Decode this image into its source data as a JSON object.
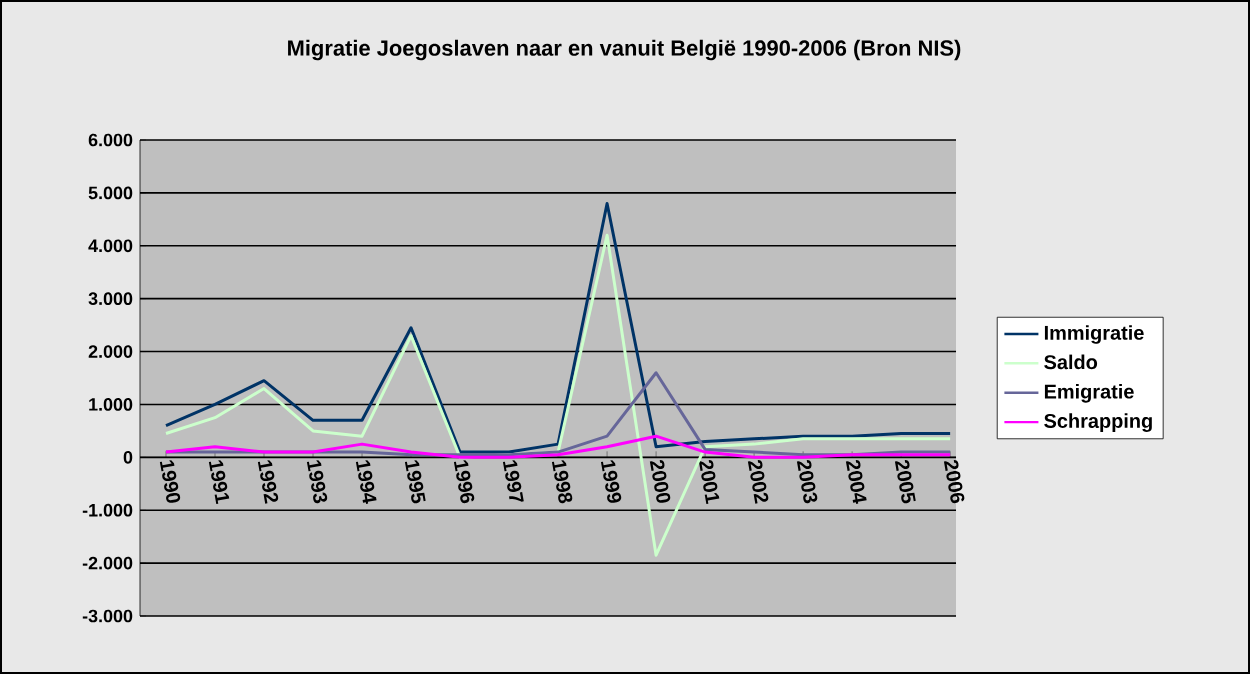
{
  "chart_data": {
    "type": "line",
    "title": "Migratie Joegoslaven naar en vanuit België 1990-2006 (Bron NIS)",
    "categories": [
      "1990",
      "1991",
      "1992",
      "1993",
      "1994",
      "1995",
      "1996",
      "1997",
      "1998",
      "1999",
      "2000",
      "2001",
      "2002",
      "2003",
      "2004",
      "2005",
      "2006"
    ],
    "series": [
      {
        "name": "Immigratie",
        "color": "#003366",
        "values": [
          600,
          1000,
          1450,
          700,
          700,
          2450,
          100,
          100,
          250,
          4800,
          200,
          300,
          350,
          400,
          400,
          450,
          450
        ]
      },
      {
        "name": "Saldo",
        "color": "#ccffcc",
        "values": [
          450,
          750,
          1300,
          500,
          400,
          2300,
          0,
          50,
          100,
          4200,
          -1850,
          200,
          250,
          350,
          350,
          350,
          350
        ]
      },
      {
        "name": "Emigratie",
        "color": "#666699",
        "values": [
          100,
          100,
          100,
          100,
          100,
          50,
          50,
          50,
          100,
          400,
          1600,
          150,
          100,
          50,
          50,
          100,
          100
        ]
      },
      {
        "name": "Schrapping",
        "color": "#ff00ff",
        "values": [
          100,
          200,
          100,
          100,
          250,
          100,
          0,
          0,
          50,
          200,
          400,
          100,
          0,
          0,
          50,
          50,
          50
        ]
      }
    ],
    "ylim": [
      -3000,
      6000
    ],
    "yticks": [
      {
        "value": -3000,
        "label": "-3.000"
      },
      {
        "value": -2000,
        "label": "-2.000"
      },
      {
        "value": -1000,
        "label": "-1.000"
      },
      {
        "value": 0,
        "label": "0"
      },
      {
        "value": 1000,
        "label": "1.000"
      },
      {
        "value": 2000,
        "label": "2.000"
      },
      {
        "value": 3000,
        "label": "3.000"
      },
      {
        "value": 4000,
        "label": "4.000"
      },
      {
        "value": 5000,
        "label": "5.000"
      },
      {
        "value": 6000,
        "label": "6.000"
      }
    ],
    "grid": "y",
    "legend": "right",
    "marker": "none",
    "line_style": "solid"
  }
}
